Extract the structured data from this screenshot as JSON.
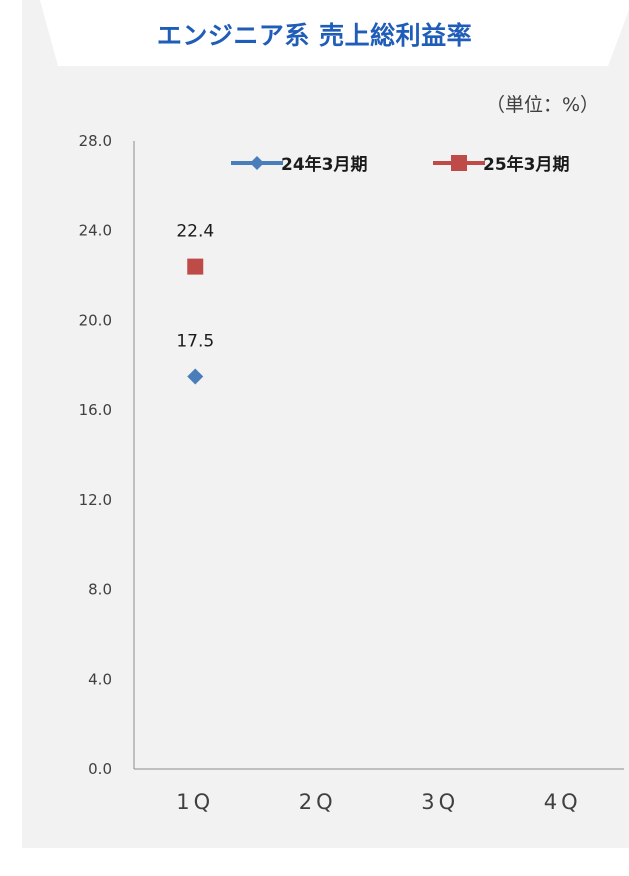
{
  "chart_data": {
    "type": "line",
    "title": "エンジニア系 売上総利益率",
    "unit_label": "（単位：%）",
    "categories": [
      "1Q",
      "2Q",
      "3Q",
      "4Q"
    ],
    "category_labels": [
      "1Q",
      "2Q",
      "3Q",
      "4Q"
    ],
    "ylim": [
      0,
      28
    ],
    "yticks": [
      "0.0",
      "4.0",
      "8.0",
      "12.0",
      "16.0",
      "20.0",
      "24.0",
      "28.0"
    ],
    "ytick_values": [
      0,
      4,
      8,
      12,
      16,
      20,
      24,
      28
    ],
    "series": [
      {
        "name": "24年3月期",
        "values": [
          17.5,
          null,
          null,
          null
        ],
        "labels": [
          "17.5"
        ],
        "marker": "diamond",
        "color": "#4a7ebb"
      },
      {
        "name": "25年3月期",
        "values": [
          22.4,
          null,
          null,
          null
        ],
        "labels": [
          "22.4"
        ],
        "marker": "square",
        "color": "#be4b48"
      }
    ],
    "legend_position": "top-right",
    "grid": false
  },
  "colors": {
    "title": "#1f5db8",
    "panel": "#f2f2f2",
    "axis": "#8c8c8c"
  }
}
